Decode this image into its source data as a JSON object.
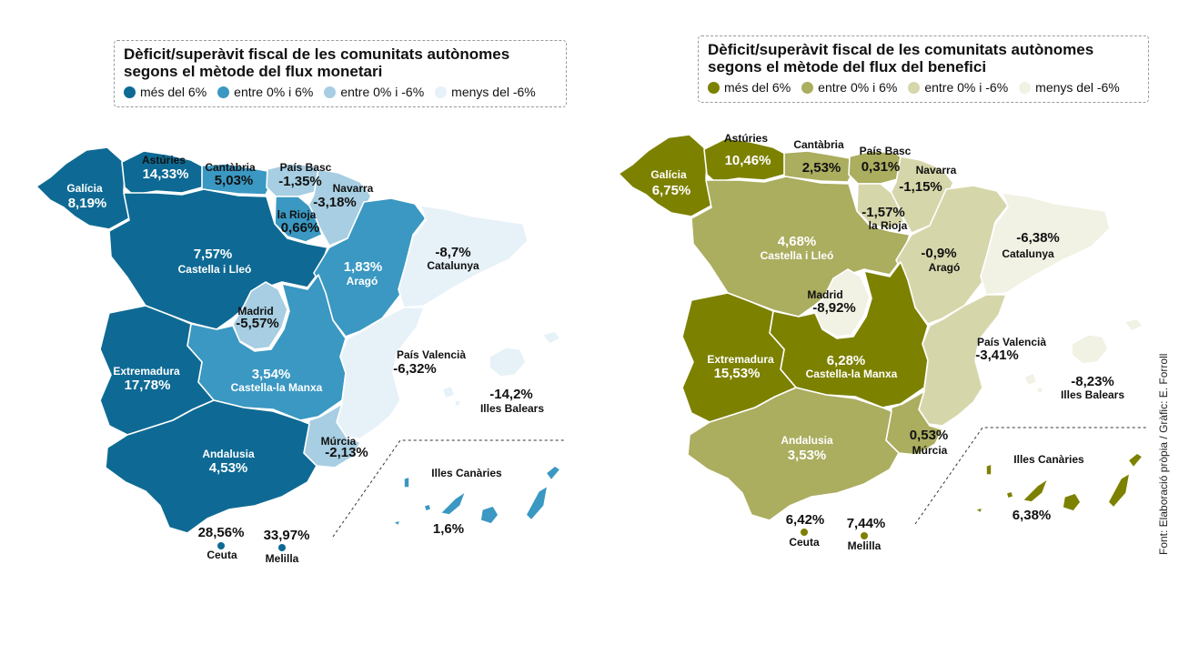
{
  "colors": {
    "mon": {
      "c1": "#0e6a94",
      "c2": "#3a98c2",
      "c3": "#a7cee2",
      "c4": "#e6f1f8"
    },
    "ben": {
      "c1": "#7d8100",
      "c2": "#abad5f",
      "c3": "#d6d6ab",
      "c4": "#f1f1e4"
    }
  },
  "monetari": {
    "title_line1": "Dèficit/superàvit fiscal de les comunitats autònomes",
    "title_line2": "segons el mètode del flux monetari",
    "legend": [
      "més del 6%",
      "entre 0% i 6%",
      "entre 0% i -6%",
      "menys del -6%"
    ],
    "regions": {
      "galicia": {
        "name": "Galícia",
        "value": "8,19%"
      },
      "asturies": {
        "name": "Astúries",
        "value": "14,33%"
      },
      "cantabria": {
        "name": "Cantàbria",
        "value": "5,03%"
      },
      "pais_basc": {
        "name": "País Basc",
        "value": "-1,35%"
      },
      "navarra": {
        "name": "Navarra",
        "value": "-3,18%"
      },
      "la_rioja": {
        "name": "la Rioja",
        "value": "0,66%"
      },
      "castella_lleo": {
        "name": "Castella i Lleó",
        "value": "7,57%"
      },
      "arago": {
        "name": "Aragó",
        "value": "1,83%"
      },
      "catalunya": {
        "name": "Catalunya",
        "value": "-8,7%"
      },
      "madrid": {
        "name": "Madrid",
        "value": "-5,57%"
      },
      "extremadura": {
        "name": "Extremadura",
        "value": "17,78%"
      },
      "castella_manxa": {
        "name": "Castella-la Manxa",
        "value": "3,54%"
      },
      "pais_valencia": {
        "name": "País Valencià",
        "value": "-6,32%"
      },
      "illes_balears": {
        "name": "Illes Balears",
        "value": "-14,2%"
      },
      "murcia": {
        "name": "Múrcia",
        "value": "-2,13%"
      },
      "andalusia": {
        "name": "Andalusia",
        "value": "4,53%"
      },
      "illes_canaries": {
        "name": "Illes Canàries",
        "value": "1,6%"
      },
      "ceuta": {
        "name": "Ceuta",
        "value": "28,56%"
      },
      "melilla": {
        "name": "Melilla",
        "value": "33,97%"
      }
    }
  },
  "benefici": {
    "title_line1": "Dèficit/superàvit fiscal de les comunitats autònomes",
    "title_line2": "segons el mètode del flux del benefici",
    "legend": [
      "més del 6%",
      "entre 0%  i 6%",
      "entre 0% i -6%",
      "menys del -6%"
    ],
    "regions": {
      "galicia": {
        "name": "Galícia",
        "value": "6,75%"
      },
      "asturies": {
        "name": "Astúries",
        "value": "10,46%"
      },
      "cantabria": {
        "name": "Cantàbria",
        "value": "2,53%"
      },
      "pais_basc": {
        "name": "País Basc",
        "value": "0,31%"
      },
      "navarra": {
        "name": "Navarra",
        "value": "-1,15%"
      },
      "la_rioja": {
        "name": "la Rioja",
        "value": "-1,57%"
      },
      "castella_lleo": {
        "name": "Castella i Lleó",
        "value": "4,68%"
      },
      "arago": {
        "name": "Aragó",
        "value": "-0,9%"
      },
      "catalunya": {
        "name": "Catalunya",
        "value": "-6,38%"
      },
      "madrid": {
        "name": "Madrid",
        "value": "-8,92%"
      },
      "extremadura": {
        "name": "Extremadura",
        "value": "15,53%"
      },
      "castella_manxa": {
        "name": "Castella-la Manxa",
        "value": "6,28%"
      },
      "pais_valencia": {
        "name": "País Valencià",
        "value": "-3,41%"
      },
      "illes_balears": {
        "name": "Illes Balears",
        "value": "-8,23%"
      },
      "murcia": {
        "name": "Múrcia",
        "value": "0,53%"
      },
      "andalusia": {
        "name": "Andalusia",
        "value": "3,53%"
      },
      "illes_canaries": {
        "name": "Illes Canàries",
        "value": "6,38%"
      },
      "ceuta": {
        "name": "Ceuta",
        "value": "6,42%"
      },
      "melilla": {
        "name": "Melilla",
        "value": "7,44%"
      }
    }
  },
  "credit": "Font: Elaboració pròpia / Gràfic: E. Forroll"
}
